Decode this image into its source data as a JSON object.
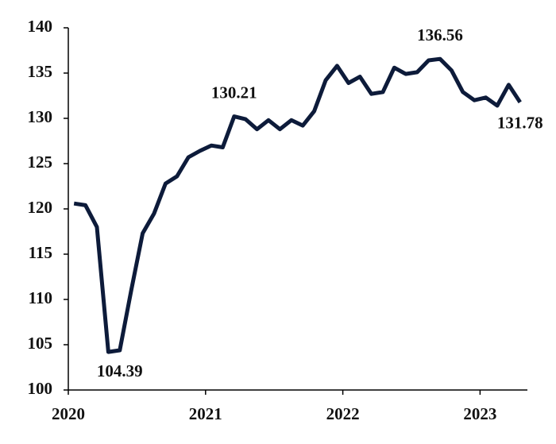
{
  "chart_data": {
    "type": "line",
    "categories": [
      "2020",
      null,
      null,
      null,
      null,
      null,
      null,
      null,
      null,
      null,
      null,
      null,
      "2021",
      null,
      null,
      null,
      null,
      null,
      null,
      null,
      null,
      null,
      null,
      null,
      "2022",
      null,
      null,
      null,
      null,
      null,
      null,
      null,
      null,
      null,
      null,
      null,
      "2023",
      null,
      null,
      null
    ],
    "series": [
      {
        "color": "#0d1b3a",
        "values": [
          120.6,
          120.4,
          118.0,
          104.2,
          104.39,
          111.0,
          117.3,
          119.5,
          122.8,
          123.6,
          125.7,
          126.4,
          127.0,
          126.8,
          130.21,
          129.9,
          128.8,
          129.8,
          128.8,
          129.8,
          129.2,
          130.8,
          134.2,
          135.8,
          133.9,
          134.6,
          132.7,
          132.9,
          135.6,
          134.9,
          135.1,
          136.4,
          136.56,
          135.3,
          132.9,
          132.0,
          132.3,
          131.4,
          133.7,
          131.78
        ],
        "value_labels": [
          null,
          null,
          null,
          null,
          "104.39",
          null,
          null,
          null,
          null,
          null,
          null,
          null,
          null,
          null,
          "130.21",
          null,
          null,
          null,
          null,
          null,
          null,
          null,
          null,
          null,
          null,
          null,
          null,
          null,
          null,
          null,
          null,
          null,
          "136.56",
          null,
          null,
          null,
          null,
          null,
          null,
          "131.78"
        ]
      }
    ],
    "ylim": [
      100,
      140
    ],
    "yticks": [
      100,
      105,
      110,
      115,
      120,
      125,
      130,
      135,
      140
    ],
    "grid": false
  }
}
